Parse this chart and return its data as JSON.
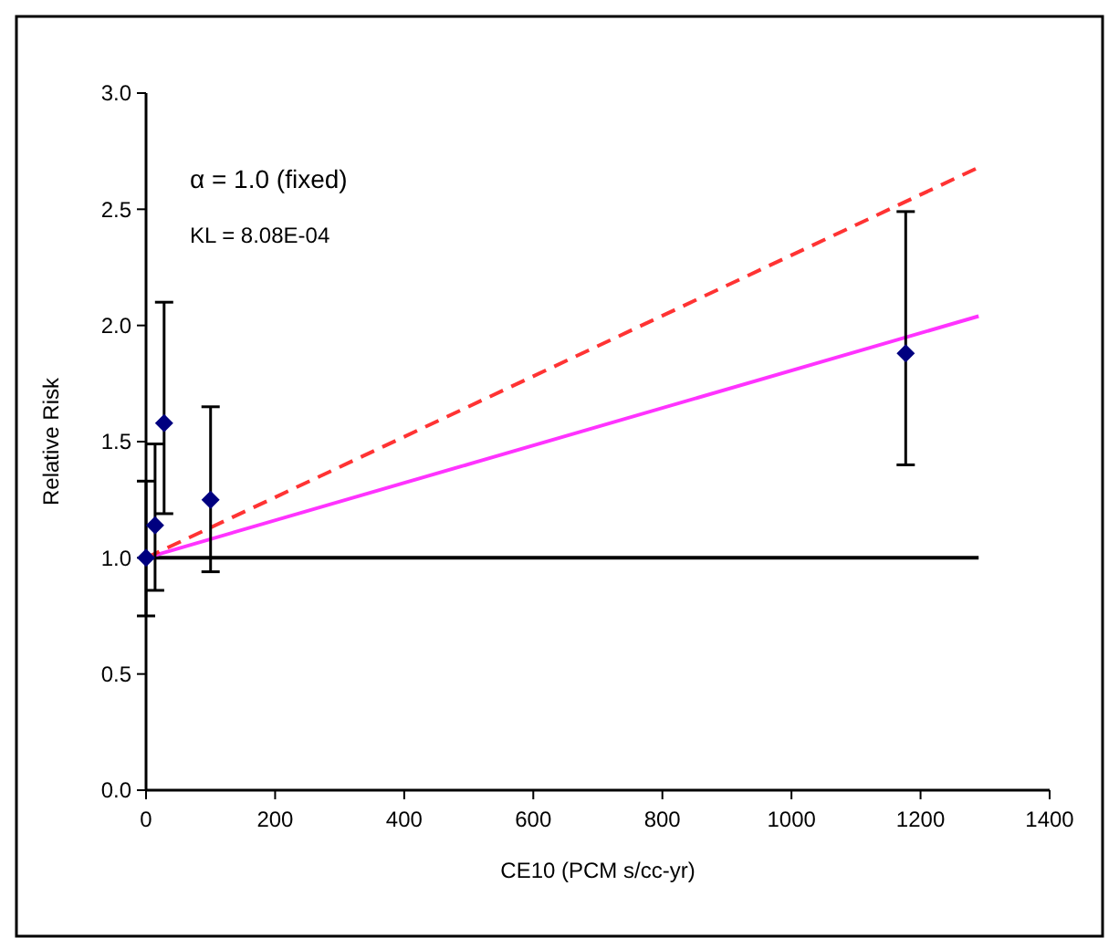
{
  "chart_data": {
    "type": "scatter",
    "xlabel": "CE10 (PCM s/cc-yr)",
    "ylabel": "Relative Risk",
    "annotations": [
      "α = 1.0 (fixed)",
      "KL = 8.08E-04"
    ],
    "xlim": [
      0,
      1400
    ],
    "xticks": [
      0,
      200,
      400,
      600,
      800,
      1000,
      1200,
      1400
    ],
    "ylim": [
      0,
      3
    ],
    "yticks": [
      {
        "value": 0,
        "label": "0.0"
      },
      {
        "value": 0.5,
        "label": "0.5"
      },
      {
        "value": 1,
        "label": "1.0"
      },
      {
        "value": 1.5,
        "label": "1.5"
      },
      {
        "value": 2,
        "label": "2.0"
      },
      {
        "value": 2.5,
        "label": "2.5"
      },
      {
        "value": 3,
        "label": "3.0"
      }
    ],
    "grid": false,
    "series": [
      {
        "type": "line",
        "color": "#000000",
        "x": [
          0,
          1290
        ],
        "values": [
          1,
          1
        ],
        "line_style": "solid",
        "marker": "none"
      },
      {
        "type": "line",
        "color": "#ff33ff",
        "x": [
          0,
          1290
        ],
        "values": [
          1,
          2.04
        ],
        "line_style": "solid",
        "marker": "none"
      },
      {
        "type": "line",
        "color": "#ff3333",
        "x": [
          0,
          1290
        ],
        "values": [
          1,
          2.68
        ],
        "line_style": "dashed",
        "marker": "none"
      },
      {
        "color": "#000080",
        "marker": "diamond",
        "x": [
          0,
          14,
          28,
          100,
          1177
        ],
        "values": [
          1,
          1.14,
          1.58,
          1.25,
          1.88
        ],
        "errors": [
          [
            0.75,
            1.33
          ],
          [
            0.86,
            1.49
          ],
          [
            1.19,
            2.1
          ],
          [
            0.94,
            1.65
          ],
          [
            1.4,
            2.49
          ]
        ]
      }
    ]
  }
}
